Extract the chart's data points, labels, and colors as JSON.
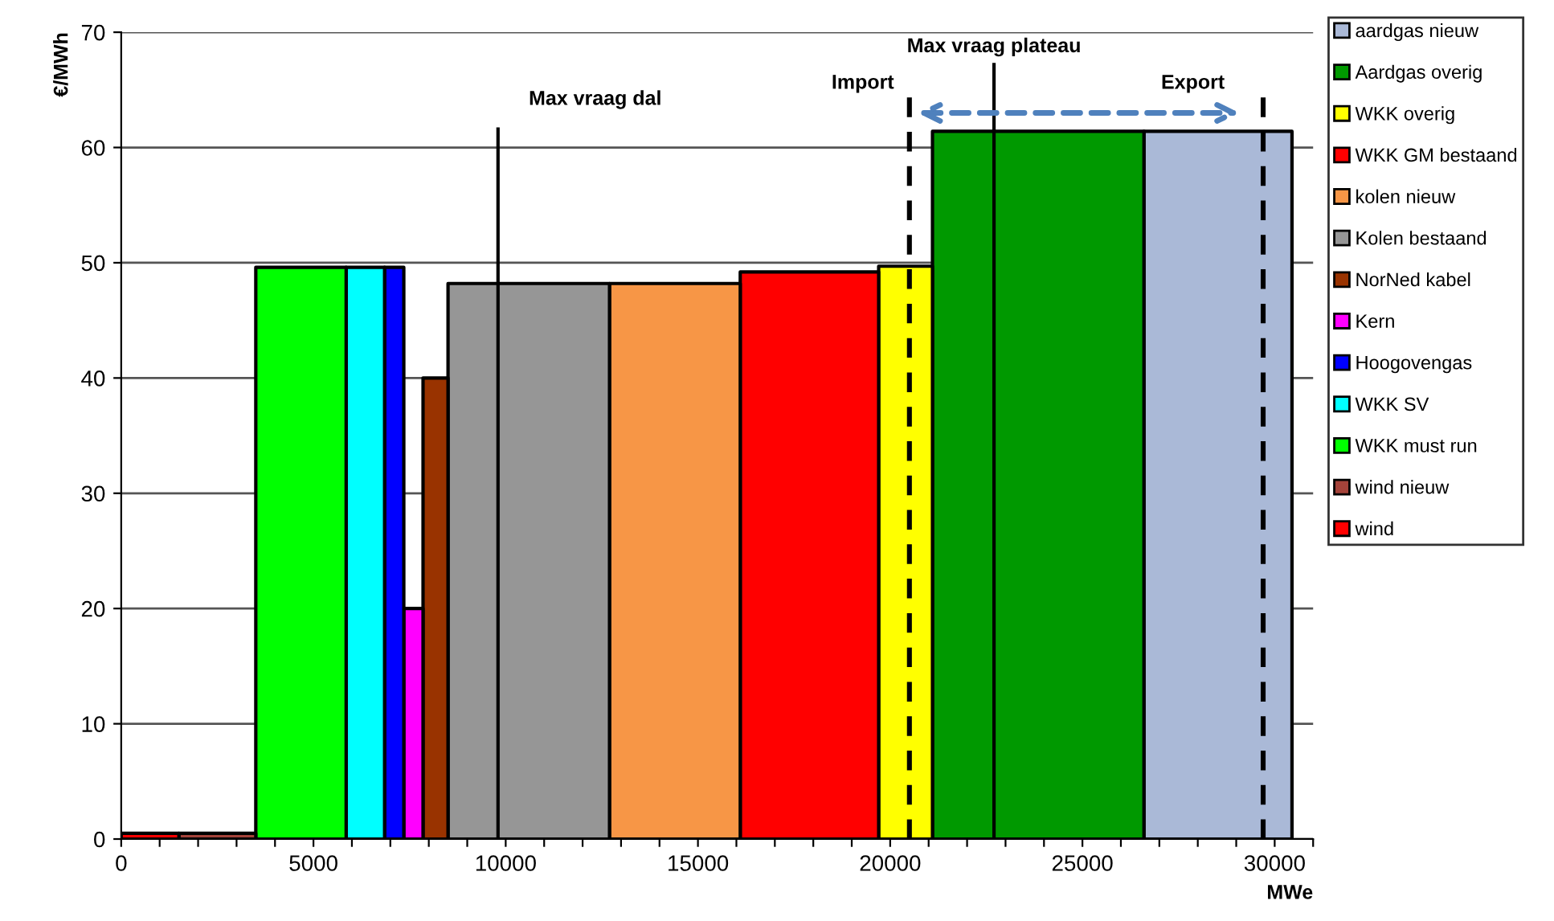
{
  "chart_data": {
    "type": "area",
    "xlabel": "MWe",
    "ylabel": "€/MWh",
    "xlim": [
      0,
      31000
    ],
    "xticks": [
      0,
      {
        "value": 1000,
        "label": null
      },
      {
        "value": 2000,
        "label": null
      },
      {
        "value": 3000,
        "label": null
      },
      {
        "value": 4000,
        "label": null
      },
      5000,
      {
        "value": 6000,
        "label": null
      },
      {
        "value": 7000,
        "label": null
      },
      {
        "value": 8000,
        "label": null
      },
      {
        "value": 9000,
        "label": null
      },
      10000,
      {
        "value": 11000,
        "label": null
      },
      {
        "value": 12000,
        "label": null
      },
      {
        "value": 13000,
        "label": null
      },
      {
        "value": 14000,
        "label": null
      },
      15000,
      {
        "value": 16000,
        "label": null
      },
      {
        "value": 17000,
        "label": null
      },
      {
        "value": 18000,
        "label": null
      },
      {
        "value": 19000,
        "label": null
      },
      20000,
      {
        "value": 21000,
        "label": null
      },
      {
        "value": 22000,
        "label": null
      },
      {
        "value": 23000,
        "label": null
      },
      {
        "value": 24000,
        "label": null
      },
      25000,
      {
        "value": 26000,
        "label": null
      },
      {
        "value": 27000,
        "label": null
      },
      {
        "value": 28000,
        "label": null
      },
      {
        "value": 29000,
        "label": null
      },
      30000,
      {
        "value": 31000,
        "label": null
      }
    ],
    "ylim": [
      0,
      70
    ],
    "yticks": [
      0,
      10,
      20,
      30,
      40,
      50,
      60,
      70
    ],
    "grid": "y",
    "legend": "right",
    "series": [
      {
        "name": "aardgas nieuw",
        "color": "#aab9d7",
        "x": [
          26600,
          30450
        ],
        "values": [
          61.4,
          61.4
        ]
      },
      {
        "name": "Aardgas overig",
        "color": "#009900",
        "x": [
          21100,
          26600
        ],
        "values": [
          61.4,
          61.4
        ]
      },
      {
        "name": "WKK overig",
        "color": "#ffff00",
        "x": [
          19700,
          21100
        ],
        "values": [
          49.7,
          49.7
        ]
      },
      {
        "name": "WKK GM bestaand",
        "color": "#ff0000",
        "x": [
          16100,
          19700
        ],
        "values": [
          49.2,
          49.2
        ]
      },
      {
        "name": "kolen nieuw",
        "color": "#f79646",
        "x": [
          12700,
          16100
        ],
        "values": [
          48.2,
          48.2
        ]
      },
      {
        "name": "Kolen bestaand",
        "color": "#969696",
        "x": [
          8500,
          12700
        ],
        "values": [
          48.2,
          48.2
        ]
      },
      {
        "name": "NorNed kabel",
        "color": "#993300",
        "x": [
          7850,
          8500
        ],
        "values": [
          40,
          40
        ]
      },
      {
        "name": "Kern",
        "color": "#ff00ff",
        "x": [
          7350,
          7850
        ],
        "values": [
          20,
          20
        ]
      },
      {
        "name": "Hoogovengas",
        "color": "#0000ff",
        "x": [
          6850,
          7350
        ],
        "values": [
          49.6,
          49.6
        ]
      },
      {
        "name": "WKK SV",
        "color": "#00ffff",
        "x": [
          5850,
          6850
        ],
        "values": [
          49.6,
          49.6
        ]
      },
      {
        "name": "WKK must run",
        "color": "#00ff00",
        "x": [
          3500,
          5850
        ],
        "values": [
          49.6,
          49.6
        ]
      },
      {
        "name": "wind nieuw",
        "color": "#a5433a",
        "x": [
          1500,
          3500
        ],
        "values": [
          0.5,
          0.5
        ]
      },
      {
        "name": "wind",
        "color": "#ff0000",
        "x": [
          0,
          1500
        ],
        "values": [
          0.5,
          0.5
        ]
      }
    ],
    "ref_lines": [
      {
        "axis": "x",
        "value": 9800,
        "label": "Max vraag dal",
        "line_style": "solid"
      },
      {
        "axis": "x",
        "value": 22700,
        "label": "Max vraag plateau",
        "line_style": "solid"
      },
      {
        "axis": "x",
        "value": 20500,
        "label": "Import",
        "line_style": "dashed"
      },
      {
        "axis": "x",
        "value": 29700,
        "label": "Export",
        "line_style": "dashed"
      }
    ]
  }
}
